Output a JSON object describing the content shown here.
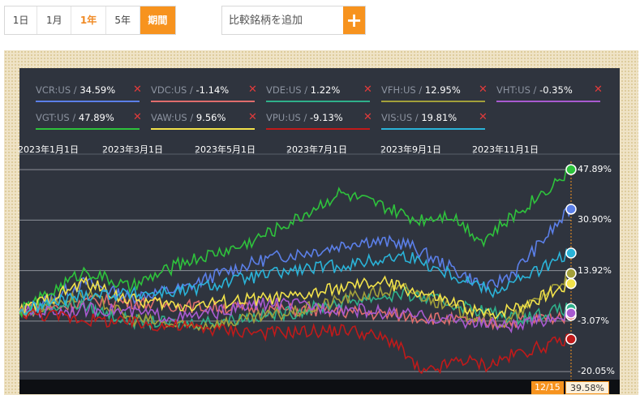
{
  "period_buttons": [
    {
      "label": "1日",
      "state": "normal"
    },
    {
      "label": "1月",
      "state": "normal"
    },
    {
      "label": "1年",
      "state": "active"
    },
    {
      "label": "5年",
      "state": "normal"
    },
    {
      "label": "期間",
      "state": "orange"
    }
  ],
  "search": {
    "placeholder": "比較銘柄を追加",
    "add_icon": "plus-icon"
  },
  "footer": {
    "date": "12/15",
    "value": "39.58%"
  },
  "chart_data": {
    "type": "line",
    "x_ticks": [
      "2023年1月1日",
      "2023年3月1日",
      "2023年5月1日",
      "2023年7月1日",
      "2023年9月1日",
      "2023年11月1日"
    ],
    "y_ticks": [
      "47.89%",
      "30.90%",
      "13.92%",
      "-3.07%",
      "-20.05%"
    ],
    "y_tick_values": [
      47.89,
      30.9,
      13.92,
      -3.07,
      -20.05
    ],
    "ylim": [
      -23,
      52
    ],
    "grid": true,
    "legend_position": "top",
    "series": [
      {
        "name": "VCR:US",
        "value_label": "34.59%",
        "color": "#5b7fe8",
        "end": 34.59,
        "anchors": [
          [
            0,
            0
          ],
          [
            0.12,
            10
          ],
          [
            0.2,
            5
          ],
          [
            0.3,
            8
          ],
          [
            0.35,
            12
          ],
          [
            0.45,
            18
          ],
          [
            0.55,
            21
          ],
          [
            0.62,
            24
          ],
          [
            0.7,
            23
          ],
          [
            0.78,
            15
          ],
          [
            0.85,
            8
          ],
          [
            0.9,
            14
          ],
          [
            1.0,
            34.59
          ]
        ]
      },
      {
        "name": "VDC:US",
        "value_label": "-1.14%",
        "color": "#e06d6d",
        "end": -1.14,
        "anchors": [
          [
            0,
            0
          ],
          [
            0.15,
            4
          ],
          [
            0.3,
            2
          ],
          [
            0.45,
            1
          ],
          [
            0.6,
            0
          ],
          [
            0.75,
            -2
          ],
          [
            0.85,
            -4
          ],
          [
            1.0,
            -1.14
          ]
        ]
      },
      {
        "name": "VDE:US",
        "value_label": "1.22%",
        "color": "#2fb08a",
        "end": 1.22,
        "anchors": [
          [
            0,
            0
          ],
          [
            0.1,
            3
          ],
          [
            0.2,
            -3
          ],
          [
            0.3,
            -4
          ],
          [
            0.4,
            -2
          ],
          [
            0.5,
            0
          ],
          [
            0.6,
            4
          ],
          [
            0.7,
            6
          ],
          [
            0.8,
            2
          ],
          [
            0.9,
            -2
          ],
          [
            1.0,
            1.22
          ]
        ]
      },
      {
        "name": "VFH:US",
        "value_label": "12.95%",
        "color": "#a3a03a",
        "end": 12.95,
        "anchors": [
          [
            0,
            0
          ],
          [
            0.12,
            6
          ],
          [
            0.2,
            -2
          ],
          [
            0.3,
            -5
          ],
          [
            0.4,
            -3
          ],
          [
            0.5,
            0
          ],
          [
            0.6,
            5
          ],
          [
            0.7,
            8
          ],
          [
            0.8,
            0
          ],
          [
            0.88,
            -4
          ],
          [
            0.95,
            6
          ],
          [
            1.0,
            12.95
          ]
        ]
      },
      {
        "name": "VHT:US",
        "value_label": "-0.35%",
        "color": "#a85ad0",
        "end": -0.35,
        "anchors": [
          [
            0,
            0
          ],
          [
            0.15,
            1
          ],
          [
            0.3,
            -2
          ],
          [
            0.45,
            3
          ],
          [
            0.6,
            1
          ],
          [
            0.7,
            -1
          ],
          [
            0.8,
            -3
          ],
          [
            0.9,
            -5
          ],
          [
            1.0,
            -0.35
          ]
        ]
      },
      {
        "name": "VGT:US",
        "value_label": "47.89%",
        "color": "#2ec23c",
        "end": 47.89,
        "anchors": [
          [
            0,
            0
          ],
          [
            0.12,
            14
          ],
          [
            0.2,
            8
          ],
          [
            0.3,
            17
          ],
          [
            0.4,
            22
          ],
          [
            0.5,
            31
          ],
          [
            0.58,
            40
          ],
          [
            0.65,
            36
          ],
          [
            0.72,
            31
          ],
          [
            0.78,
            33
          ],
          [
            0.84,
            24
          ],
          [
            0.9,
            33
          ],
          [
            1.0,
            47.89
          ]
        ]
      },
      {
        "name": "VAW:US",
        "value_label": "9.56%",
        "color": "#f2e24a",
        "end": 9.56,
        "anchors": [
          [
            0,
            0
          ],
          [
            0.12,
            10
          ],
          [
            0.2,
            4
          ],
          [
            0.3,
            2
          ],
          [
            0.4,
            4
          ],
          [
            0.5,
            5
          ],
          [
            0.58,
            8
          ],
          [
            0.66,
            10
          ],
          [
            0.75,
            5
          ],
          [
            0.85,
            -1
          ],
          [
            0.92,
            3
          ],
          [
            1.0,
            9.56
          ]
        ]
      },
      {
        "name": "VPU:US",
        "value_label": "-9.13%",
        "color": "#c01a1a",
        "end": -9.13,
        "anchors": [
          [
            0,
            0
          ],
          [
            0.15,
            -3
          ],
          [
            0.3,
            -5
          ],
          [
            0.45,
            -7
          ],
          [
            0.6,
            -6
          ],
          [
            0.68,
            -10
          ],
          [
            0.73,
            -21
          ],
          [
            0.8,
            -16
          ],
          [
            0.85,
            -18
          ],
          [
            0.9,
            -14
          ],
          [
            1.0,
            -9.13
          ]
        ]
      },
      {
        "name": "VIS:US",
        "value_label": "19.81%",
        "color": "#2ab3d8",
        "end": 19.81,
        "anchors": [
          [
            0,
            0
          ],
          [
            0.12,
            6
          ],
          [
            0.2,
            6
          ],
          [
            0.3,
            7
          ],
          [
            0.4,
            11
          ],
          [
            0.5,
            14
          ],
          [
            0.6,
            16
          ],
          [
            0.7,
            19
          ],
          [
            0.78,
            13
          ],
          [
            0.86,
            7
          ],
          [
            0.92,
            12
          ],
          [
            1.0,
            19.81
          ]
        ]
      }
    ]
  }
}
